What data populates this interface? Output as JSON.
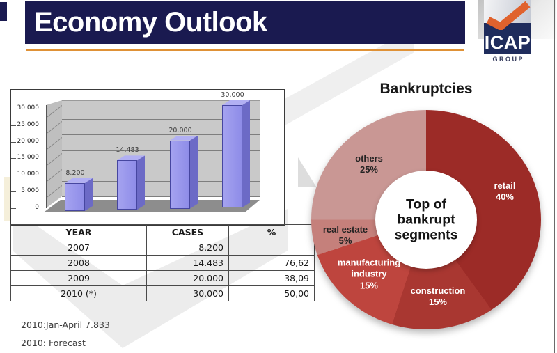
{
  "slide": {
    "title": "Economy Outlook",
    "accent_navy": "#1A1A50",
    "accent_orange": "#DF9136",
    "logo": {
      "brand": "ICAP",
      "subtext": "G R O U P"
    },
    "footnotes": [
      "2010:Jan-April 7.833",
      "2010: Forecast"
    ]
  },
  "table": {
    "headers": [
      "YEAR",
      "CASES",
      "%"
    ],
    "rows": [
      [
        "2007",
        "8.200",
        ""
      ],
      [
        "2008",
        "14.483",
        "76,62"
      ],
      [
        "2009",
        "20.000",
        "38,09"
      ],
      [
        "2010 (*)",
        "30.000",
        "50,00"
      ]
    ]
  },
  "chart_data": [
    {
      "type": "bar",
      "style": "3d-column",
      "title": "",
      "categories": [
        "2007",
        "2008",
        "2009",
        "2010 (*)"
      ],
      "values": [
        8200,
        14483,
        20000,
        30000
      ],
      "value_labels": [
        "8.200",
        "14.483",
        "20.000",
        "30.000"
      ],
      "xlabel": "",
      "ylabel": "",
      "ylim": [
        0,
        30000
      ],
      "yticks": [
        "30.000",
        "25.000",
        "20.000",
        "15.000",
        "10.000",
        "5.000",
        "0"
      ],
      "grid": true,
      "bar_color": "#9794EB"
    },
    {
      "type": "pie",
      "subtype": "donut",
      "title": "Bankruptcies",
      "center_label_lines": [
        "Top of",
        "bankrupt",
        "segments"
      ],
      "legend_position": "on-slices",
      "segments": [
        {
          "label": "retail",
          "value": 40,
          "display_lines": [
            "retail",
            "40%"
          ],
          "color": "#9C2B27",
          "label_color": "#FFFFFF"
        },
        {
          "label": "construction",
          "value": 15,
          "display_lines": [
            "construction",
            "15%"
          ],
          "color": "#A93731",
          "label_color": "#FFFFFF"
        },
        {
          "label": "manufacturing industry",
          "value": 15,
          "display_lines": [
            "manufacturing",
            "industry",
            "15%"
          ],
          "color": "#BE453E",
          "label_color": "#FFFFFF"
        },
        {
          "label": "real estate",
          "value": 5,
          "display_lines": [
            "real estate",
            "5%"
          ],
          "color": "#C5807B",
          "label_color": "#222222"
        },
        {
          "label": "others",
          "value": 25,
          "display_lines": [
            "others",
            "25%"
          ],
          "color": "#C99794",
          "label_color": "#222222"
        }
      ]
    }
  ]
}
